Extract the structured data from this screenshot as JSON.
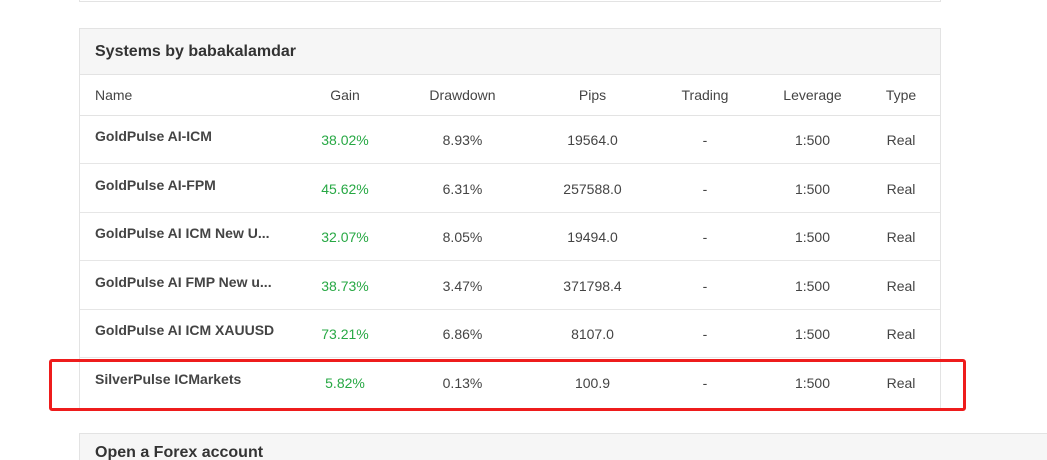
{
  "systems_card": {
    "title": "Systems by babakalamdar",
    "columns": [
      "Name",
      "Gain",
      "Drawdown",
      "Pips",
      "Trading",
      "Leverage",
      "Type"
    ],
    "rows": [
      {
        "name": "GoldPulse AI-ICM",
        "gain": "38.02%",
        "drawdown": "8.93%",
        "pips": "19564.0",
        "trading": "-",
        "leverage": "1:500",
        "type": "Real"
      },
      {
        "name": "GoldPulse AI-FPM",
        "gain": "45.62%",
        "drawdown": "6.31%",
        "pips": "257588.0",
        "trading": "-",
        "leverage": "1:500",
        "type": "Real"
      },
      {
        "name": "GoldPulse AI ICM New U...",
        "gain": "32.07%",
        "drawdown": "8.05%",
        "pips": "19494.0",
        "trading": "-",
        "leverage": "1:500",
        "type": "Real"
      },
      {
        "name": "GoldPulse AI FMP New u...",
        "gain": "38.73%",
        "drawdown": "3.47%",
        "pips": "371798.4",
        "trading": "-",
        "leverage": "1:500",
        "type": "Real"
      },
      {
        "name": "GoldPulse AI ICM XAUUSD",
        "gain": "73.21%",
        "drawdown": "6.86%",
        "pips": "8107.0",
        "trading": "-",
        "leverage": "1:500",
        "type": "Real"
      },
      {
        "name": "SilverPulse ICMarkets",
        "gain": "5.82%",
        "drawdown": "0.13%",
        "pips": "100.9",
        "trading": "-",
        "leverage": "1:500",
        "type": "Real"
      }
    ]
  },
  "forex_card": {
    "title": "Open a Forex account"
  },
  "colors": {
    "gain_positive": "#27a844",
    "highlight": "#ee1c1c",
    "header_bg": "#f6f6f6"
  }
}
